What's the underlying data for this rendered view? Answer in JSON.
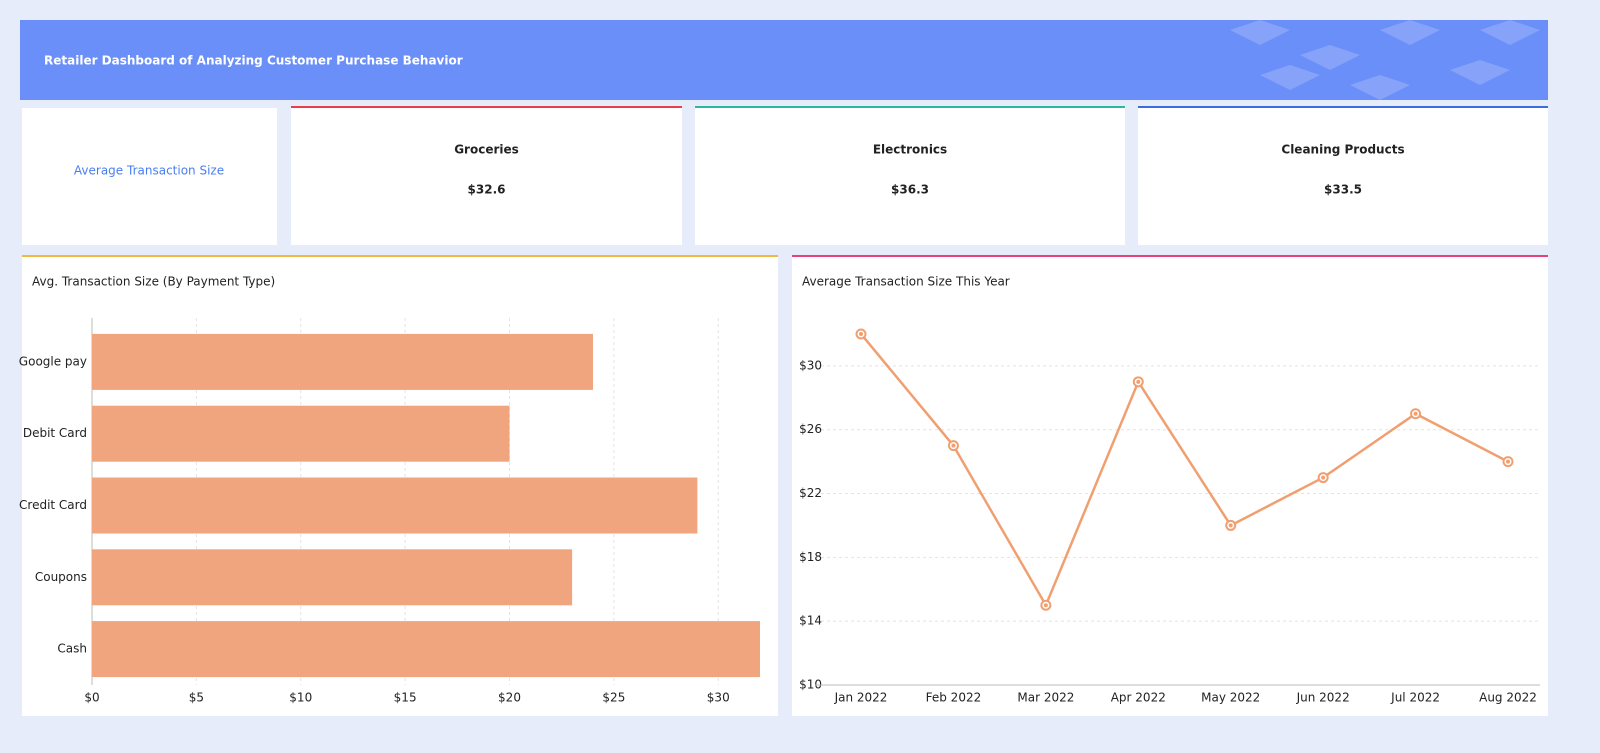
{
  "header": {
    "title": "Retailer Dashboard of Analyzing Customer Purchase Behavior"
  },
  "kpi_heading": "Average Transaction Size",
  "kpis": [
    {
      "label": "Groceries",
      "value": "$32.6",
      "color": "#e8404a"
    },
    {
      "label": "Electronics",
      "value": "$36.3",
      "color": "#2cb89a"
    },
    {
      "label": "Cleaning Products",
      "value": "$33.5",
      "color": "#3a6ee0"
    }
  ],
  "chart_data": [
    {
      "type": "bar",
      "title": "Avg. Transaction Size (By Payment Type)",
      "accent": "#f0b840",
      "categories": [
        "Google pay",
        "Debit Card",
        "Credit Card",
        "Coupons",
        "Cash"
      ],
      "values": [
        24,
        20,
        29,
        23,
        32
      ],
      "color": "#f1a57f",
      "xlim": [
        0,
        32
      ],
      "xticks": [
        {
          "value": 0,
          "label": "$0"
        },
        {
          "value": 5,
          "label": "$5"
        },
        {
          "value": 10,
          "label": "$10"
        },
        {
          "value": 15,
          "label": "$15"
        },
        {
          "value": 20,
          "label": "$20"
        },
        {
          "value": 25,
          "label": "$25"
        },
        {
          "value": 30,
          "label": "$30"
        }
      ],
      "grid": true
    },
    {
      "type": "line",
      "title": "Average Transaction Size This Year",
      "accent": "#e8407a",
      "categories": [
        "Jan 2022",
        "Feb 2022",
        "Mar 2022",
        "Apr 2022",
        "May 2022",
        "Jun 2022",
        "Jul 2022",
        "Aug 2022"
      ],
      "values": [
        32,
        25,
        15,
        29,
        20,
        23,
        27,
        24
      ],
      "color": "#f0a070",
      "ylim": [
        10,
        33
      ],
      "yticks": [
        {
          "value": 10,
          "label": "$10"
        },
        {
          "value": 14,
          "label": "$14"
        },
        {
          "value": 18,
          "label": "$18"
        },
        {
          "value": 22,
          "label": "$22"
        },
        {
          "value": 26,
          "label": "$26"
        },
        {
          "value": 30,
          "label": "$30"
        }
      ],
      "grid": true
    }
  ]
}
